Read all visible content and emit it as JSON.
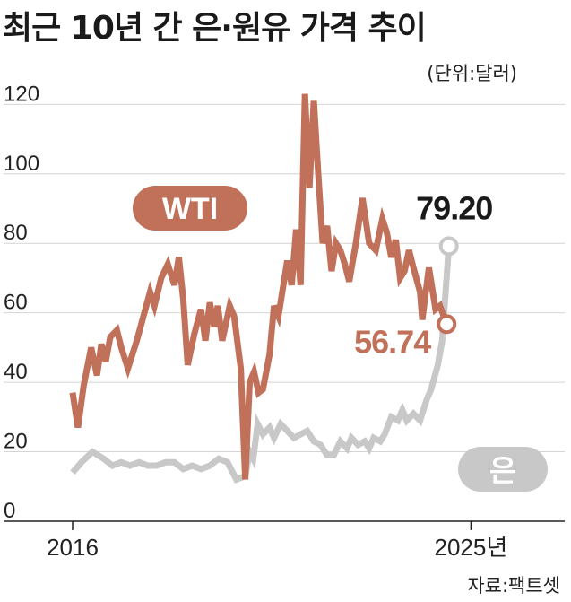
{
  "header": {
    "title": "최근 10년 간 은·원유 가격 추이",
    "unit": "(단위:달러)",
    "source": "자료:팩트셋"
  },
  "colors": {
    "wti": "#c1705a",
    "silver": "#c8c8c8",
    "axis": "#222222",
    "grid": "#d4d4d4"
  },
  "chart_data": {
    "type": "line",
    "title": "최근 10년 간 은·원유 가격 추이",
    "unit": "(단위:달러)",
    "ylim": [
      0,
      125
    ],
    "yticks": [
      0,
      20,
      40,
      60,
      80,
      100,
      120
    ],
    "xlim": [
      2016.0,
      2026.45
    ],
    "xtick_labels": [
      {
        "x": 2016,
        "label": "2016"
      },
      {
        "x": 2025,
        "label": "2025년"
      }
    ],
    "grid": true,
    "series": [
      {
        "name": "WTI",
        "label_position": "left",
        "end_label": "56.74",
        "points": [
          [
            2016.0,
            37
          ],
          [
            2016.12,
            27
          ],
          [
            2016.25,
            39
          ],
          [
            2016.42,
            50
          ],
          [
            2016.55,
            42
          ],
          [
            2016.65,
            51
          ],
          [
            2016.75,
            46
          ],
          [
            2016.85,
            53
          ],
          [
            2017.0,
            55
          ],
          [
            2017.1,
            50
          ],
          [
            2017.25,
            44
          ],
          [
            2017.45,
            52
          ],
          [
            2017.6,
            59
          ],
          [
            2017.75,
            66
          ],
          [
            2017.85,
            62
          ],
          [
            2018.0,
            70
          ],
          [
            2018.15,
            74
          ],
          [
            2018.3,
            68
          ],
          [
            2018.4,
            76
          ],
          [
            2018.5,
            64
          ],
          [
            2018.6,
            45
          ],
          [
            2018.75,
            54
          ],
          [
            2018.9,
            61
          ],
          [
            2019.0,
            52
          ],
          [
            2019.1,
            63
          ],
          [
            2019.2,
            56
          ],
          [
            2019.28,
            62
          ],
          [
            2019.38,
            52
          ],
          [
            2019.55,
            62
          ],
          [
            2019.65,
            59
          ],
          [
            2019.8,
            44
          ],
          [
            2019.9,
            12
          ],
          [
            2020.0,
            40
          ],
          [
            2020.1,
            43
          ],
          [
            2020.2,
            37
          ],
          [
            2020.3,
            38
          ],
          [
            2020.45,
            48
          ],
          [
            2020.55,
            62
          ],
          [
            2020.65,
            59
          ],
          [
            2020.75,
            67
          ],
          [
            2020.85,
            75
          ],
          [
            2020.95,
            68
          ],
          [
            2021.05,
            84
          ],
          [
            2021.15,
            68
          ],
          [
            2021.25,
            123
          ],
          [
            2021.35,
            96
          ],
          [
            2021.45,
            121
          ],
          [
            2021.55,
            100
          ],
          [
            2021.65,
            80
          ],
          [
            2021.75,
            85
          ],
          [
            2021.85,
            72
          ],
          [
            2021.95,
            80
          ],
          [
            2022.05,
            78
          ],
          [
            2022.15,
            74
          ],
          [
            2022.25,
            69
          ],
          [
            2022.4,
            80
          ],
          [
            2022.55,
            93
          ],
          [
            2022.7,
            80
          ],
          [
            2022.85,
            78
          ],
          [
            2023.0,
            87
          ],
          [
            2023.1,
            83
          ],
          [
            2023.2,
            76
          ],
          [
            2023.3,
            81
          ],
          [
            2023.4,
            70
          ],
          [
            2023.5,
            72
          ],
          [
            2023.6,
            78
          ],
          [
            2023.7,
            73
          ],
          [
            2023.85,
            66
          ],
          [
            2023.9,
            58
          ],
          [
            2024.05,
            73
          ],
          [
            2024.2,
            61
          ],
          [
            2024.3,
            62
          ],
          [
            2024.45,
            56.74
          ]
        ]
      },
      {
        "name": "은",
        "label_position": "right",
        "end_label": "79.20",
        "points": [
          [
            2016.0,
            14
          ],
          [
            2016.2,
            17
          ],
          [
            2016.45,
            20
          ],
          [
            2016.7,
            18
          ],
          [
            2016.9,
            16
          ],
          [
            2017.1,
            17
          ],
          [
            2017.3,
            16
          ],
          [
            2017.5,
            17
          ],
          [
            2017.7,
            16
          ],
          [
            2017.9,
            16
          ],
          [
            2018.1,
            17
          ],
          [
            2018.3,
            17
          ],
          [
            2018.5,
            15
          ],
          [
            2018.7,
            16
          ],
          [
            2018.9,
            15
          ],
          [
            2019.1,
            16
          ],
          [
            2019.3,
            18
          ],
          [
            2019.5,
            17
          ],
          [
            2019.7,
            12
          ],
          [
            2019.9,
            13
          ],
          [
            2020.0,
            20
          ],
          [
            2020.08,
            18
          ],
          [
            2020.18,
            28
          ],
          [
            2020.3,
            25
          ],
          [
            2020.45,
            27
          ],
          [
            2020.55,
            24
          ],
          [
            2020.7,
            28
          ],
          [
            2020.85,
            26
          ],
          [
            2021.0,
            24
          ],
          [
            2021.15,
            25
          ],
          [
            2021.3,
            26
          ],
          [
            2021.45,
            23
          ],
          [
            2021.6,
            22
          ],
          [
            2021.75,
            19
          ],
          [
            2021.9,
            19
          ],
          [
            2022.05,
            23
          ],
          [
            2022.2,
            21
          ],
          [
            2022.3,
            24
          ],
          [
            2022.45,
            22
          ],
          [
            2022.6,
            23
          ],
          [
            2022.7,
            21
          ],
          [
            2022.8,
            24
          ],
          [
            2022.95,
            23
          ],
          [
            2023.05,
            25
          ],
          [
            2023.2,
            30
          ],
          [
            2023.35,
            29
          ],
          [
            2023.45,
            32
          ],
          [
            2023.55,
            29
          ],
          [
            2023.7,
            31
          ],
          [
            2023.85,
            29
          ],
          [
            2024.0,
            35
          ],
          [
            2024.1,
            38
          ],
          [
            2024.25,
            45
          ],
          [
            2024.35,
            52
          ],
          [
            2024.5,
            79.2
          ]
        ]
      }
    ]
  }
}
